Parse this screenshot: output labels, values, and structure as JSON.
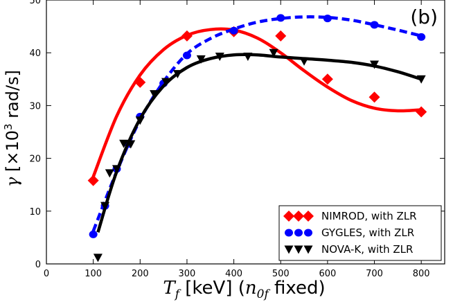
{
  "chart_data": {
    "type": "scatter",
    "panel_label": "(b)",
    "xlabel": "T_f [keV] (n_0f fixed)",
    "xlabel_parts": {
      "sym": "T",
      "sub": "f",
      "units": " [keV] (",
      "sym2": "n",
      "sub2": "0f",
      "tail": " fixed)"
    },
    "ylabel": "γ [×10³ rad/s]",
    "ylabel_parts": {
      "sym": "γ",
      "pre": " [×10",
      "sup": "3",
      "post": " rad/s]"
    },
    "xlim": [
      0,
      850
    ],
    "ylim": [
      0,
      50
    ],
    "xticks": [
      0,
      100,
      200,
      300,
      400,
      500,
      600,
      700,
      800
    ],
    "yticks": [
      0,
      10,
      20,
      30,
      40,
      50
    ],
    "legend_position": "lower-right",
    "series": [
      {
        "name": "NIMROD, with ZLR",
        "color": "#ff0000",
        "marker": "diamond",
        "line_style": "solid",
        "x": [
          100,
          200,
          300,
          400,
          500,
          600,
          700,
          800
        ],
        "y": [
          15.8,
          34.4,
          43.2,
          44.0,
          43.2,
          35.0,
          31.6,
          28.8
        ],
        "fit_x": [
          100,
          150,
          200,
          250,
          300,
          350,
          400,
          450,
          500,
          550,
          600,
          650,
          700,
          750,
          800
        ],
        "fit_y": [
          16.5,
          28.0,
          35.8,
          40.6,
          43.3,
          44.4,
          44.3,
          42.8,
          40.0,
          36.6,
          33.5,
          31.0,
          29.5,
          29.0,
          29.2
        ]
      },
      {
        "name": "GYGLES, with ZLR",
        "color": "#0000ff",
        "marker": "circle",
        "line_style": "dashed",
        "x": [
          100,
          125,
          150,
          175,
          200,
          250,
          300,
          400,
          500,
          600,
          700,
          800
        ],
        "y": [
          5.6,
          11.0,
          18.0,
          22.7,
          27.9,
          34.2,
          39.5,
          44.2,
          46.6,
          46.5,
          45.3,
          43.0
        ],
        "fit_x": [
          100,
          150,
          200,
          250,
          300,
          350,
          400,
          450,
          500,
          550,
          600,
          650,
          700,
          750,
          800
        ],
        "fit_y": [
          6.2,
          17.5,
          27.3,
          34.5,
          39.8,
          42.7,
          44.5,
          45.8,
          46.5,
          46.8,
          46.7,
          46.2,
          45.3,
          44.3,
          43.2
        ]
      },
      {
        "name": "NOVA-K, with ZLR",
        "color": "#000000",
        "marker": "triangle-down",
        "line_style": "solid",
        "x": [
          110,
          125,
          135,
          150,
          165,
          180,
          200,
          230,
          255,
          280,
          330,
          370,
          430,
          485,
          550,
          700,
          800
        ],
        "y": [
          1.2,
          11.0,
          17.2,
          18.0,
          22.8,
          22.7,
          27.2,
          32.2,
          34.5,
          36.0,
          38.8,
          39.3,
          39.3,
          40.0,
          38.4,
          37.8,
          35.0
        ],
        "fit_x": [
          110,
          150,
          200,
          250,
          300,
          350,
          400,
          450,
          500,
          550,
          600,
          650,
          700,
          750,
          800
        ],
        "fit_y": [
          6.0,
          17.5,
          27.5,
          33.7,
          37.2,
          38.9,
          39.6,
          39.6,
          39.2,
          38.9,
          38.6,
          38.2,
          37.5,
          36.4,
          35.0
        ]
      }
    ]
  }
}
